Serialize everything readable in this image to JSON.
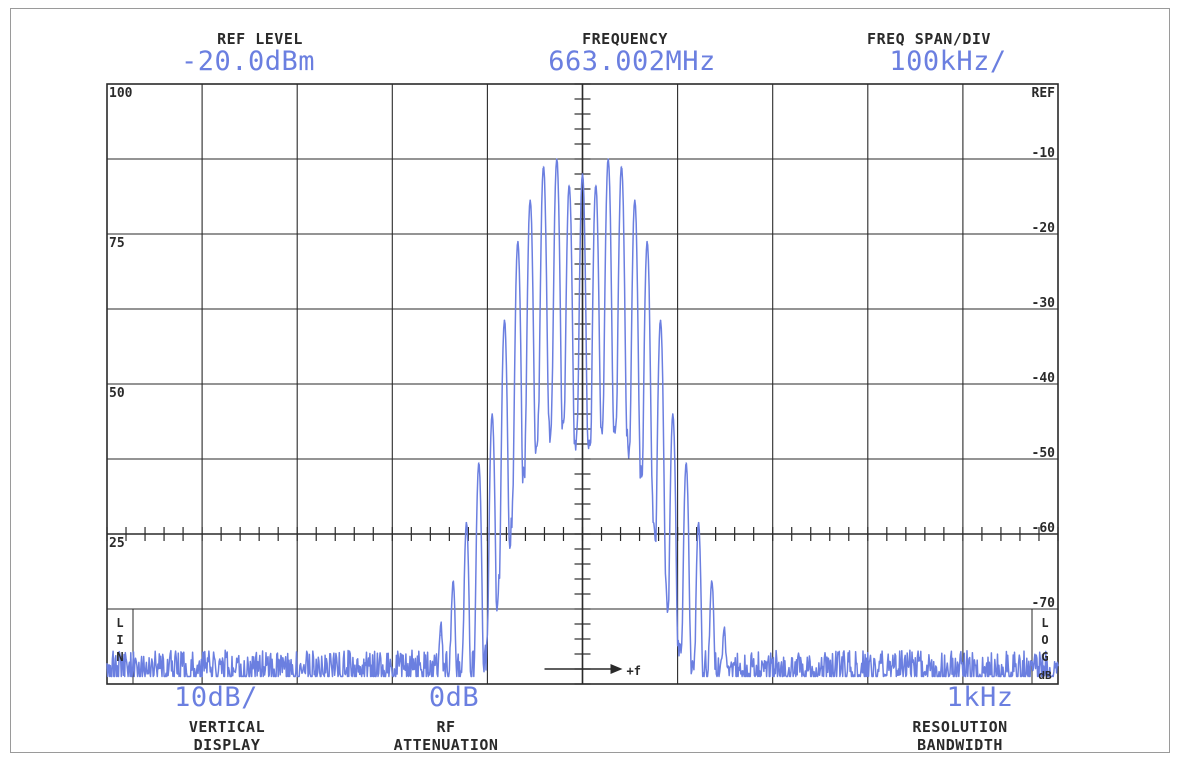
{
  "header": {
    "ref_level_label": "REF LEVEL",
    "ref_level_value": "-20.0dBm",
    "frequency_label": "FREQUENCY",
    "frequency_value": "663.002MHz",
    "span_label": "FREQ SPAN/DIV",
    "span_value": "100kHz/"
  },
  "footer": {
    "vertical_value": "10dB/",
    "vertical_label_1": "VERTICAL",
    "vertical_label_2": "DISPLAY",
    "atten_value": "0dB",
    "atten_label_1": "RF",
    "atten_label_2": "ATTENUATION",
    "rbw_value": "1kHz",
    "rbw_label_1": "RESOLUTION",
    "rbw_label_2": "BANDWIDTH"
  },
  "scale_labels": {
    "left_mode": "LIN",
    "right_mode": "LOG",
    "right_unit": "dB",
    "freq_arrow": "+f"
  },
  "colors": {
    "trace": "#6b7fe0",
    "grid": "#2a2a2a",
    "text": "#2a2a2a"
  },
  "chart_data": {
    "type": "line",
    "title": "",
    "center_frequency_mhz": 663.002,
    "span_per_div_khz": 100,
    "xlim_div": [
      -5,
      5
    ],
    "left_axis": {
      "ticks": [
        "100",
        "75",
        "50",
        "25"
      ],
      "scale": "linear"
    },
    "right_axis": {
      "ticks": [
        "REF",
        "-10",
        "-20",
        "-30",
        "-40",
        "-50",
        "-60",
        "-70"
      ],
      "scale": "log",
      "units": "dB"
    },
    "ylim_db": [
      -80,
      0
    ],
    "grid": true,
    "noise_floor_db": -78,
    "series": [
      {
        "spectral_lines": [
          {
            "offset_div": -1.49,
            "level_db": -73.5
          },
          {
            "offset_div": -1.36,
            "level_db": -66.5
          },
          {
            "offset_div": -1.22,
            "level_db": -58.5
          },
          {
            "offset_div": -1.09,
            "level_db": -50.5
          },
          {
            "offset_div": -0.95,
            "level_db": -44.0
          },
          {
            "offset_div": -0.82,
            "level_db": -31.5
          },
          {
            "offset_div": -0.68,
            "level_db": -21.0
          },
          {
            "offset_div": -0.55,
            "level_db": -15.5
          },
          {
            "offset_div": -0.41,
            "level_db": -11.0
          },
          {
            "offset_div": -0.27,
            "level_db": -10.0
          },
          {
            "offset_div": -0.14,
            "level_db": -13.5
          },
          {
            "offset_div": 0.0,
            "level_db": -12.0
          },
          {
            "offset_div": 0.14,
            "level_db": -13.5
          },
          {
            "offset_div": 0.27,
            "level_db": -10.0
          },
          {
            "offset_div": 0.41,
            "level_db": -11.0
          },
          {
            "offset_div": 0.55,
            "level_db": -15.5
          },
          {
            "offset_div": 0.68,
            "level_db": -21.0
          },
          {
            "offset_div": 0.82,
            "level_db": -31.5
          },
          {
            "offset_div": 0.95,
            "level_db": -44.0
          },
          {
            "offset_div": 1.09,
            "level_db": -50.5
          },
          {
            "offset_div": 1.22,
            "level_db": -58.5
          },
          {
            "offset_div": 1.36,
            "level_db": -66.5
          },
          {
            "offset_div": 1.49,
            "level_db": -73.5
          }
        ]
      }
    ]
  }
}
